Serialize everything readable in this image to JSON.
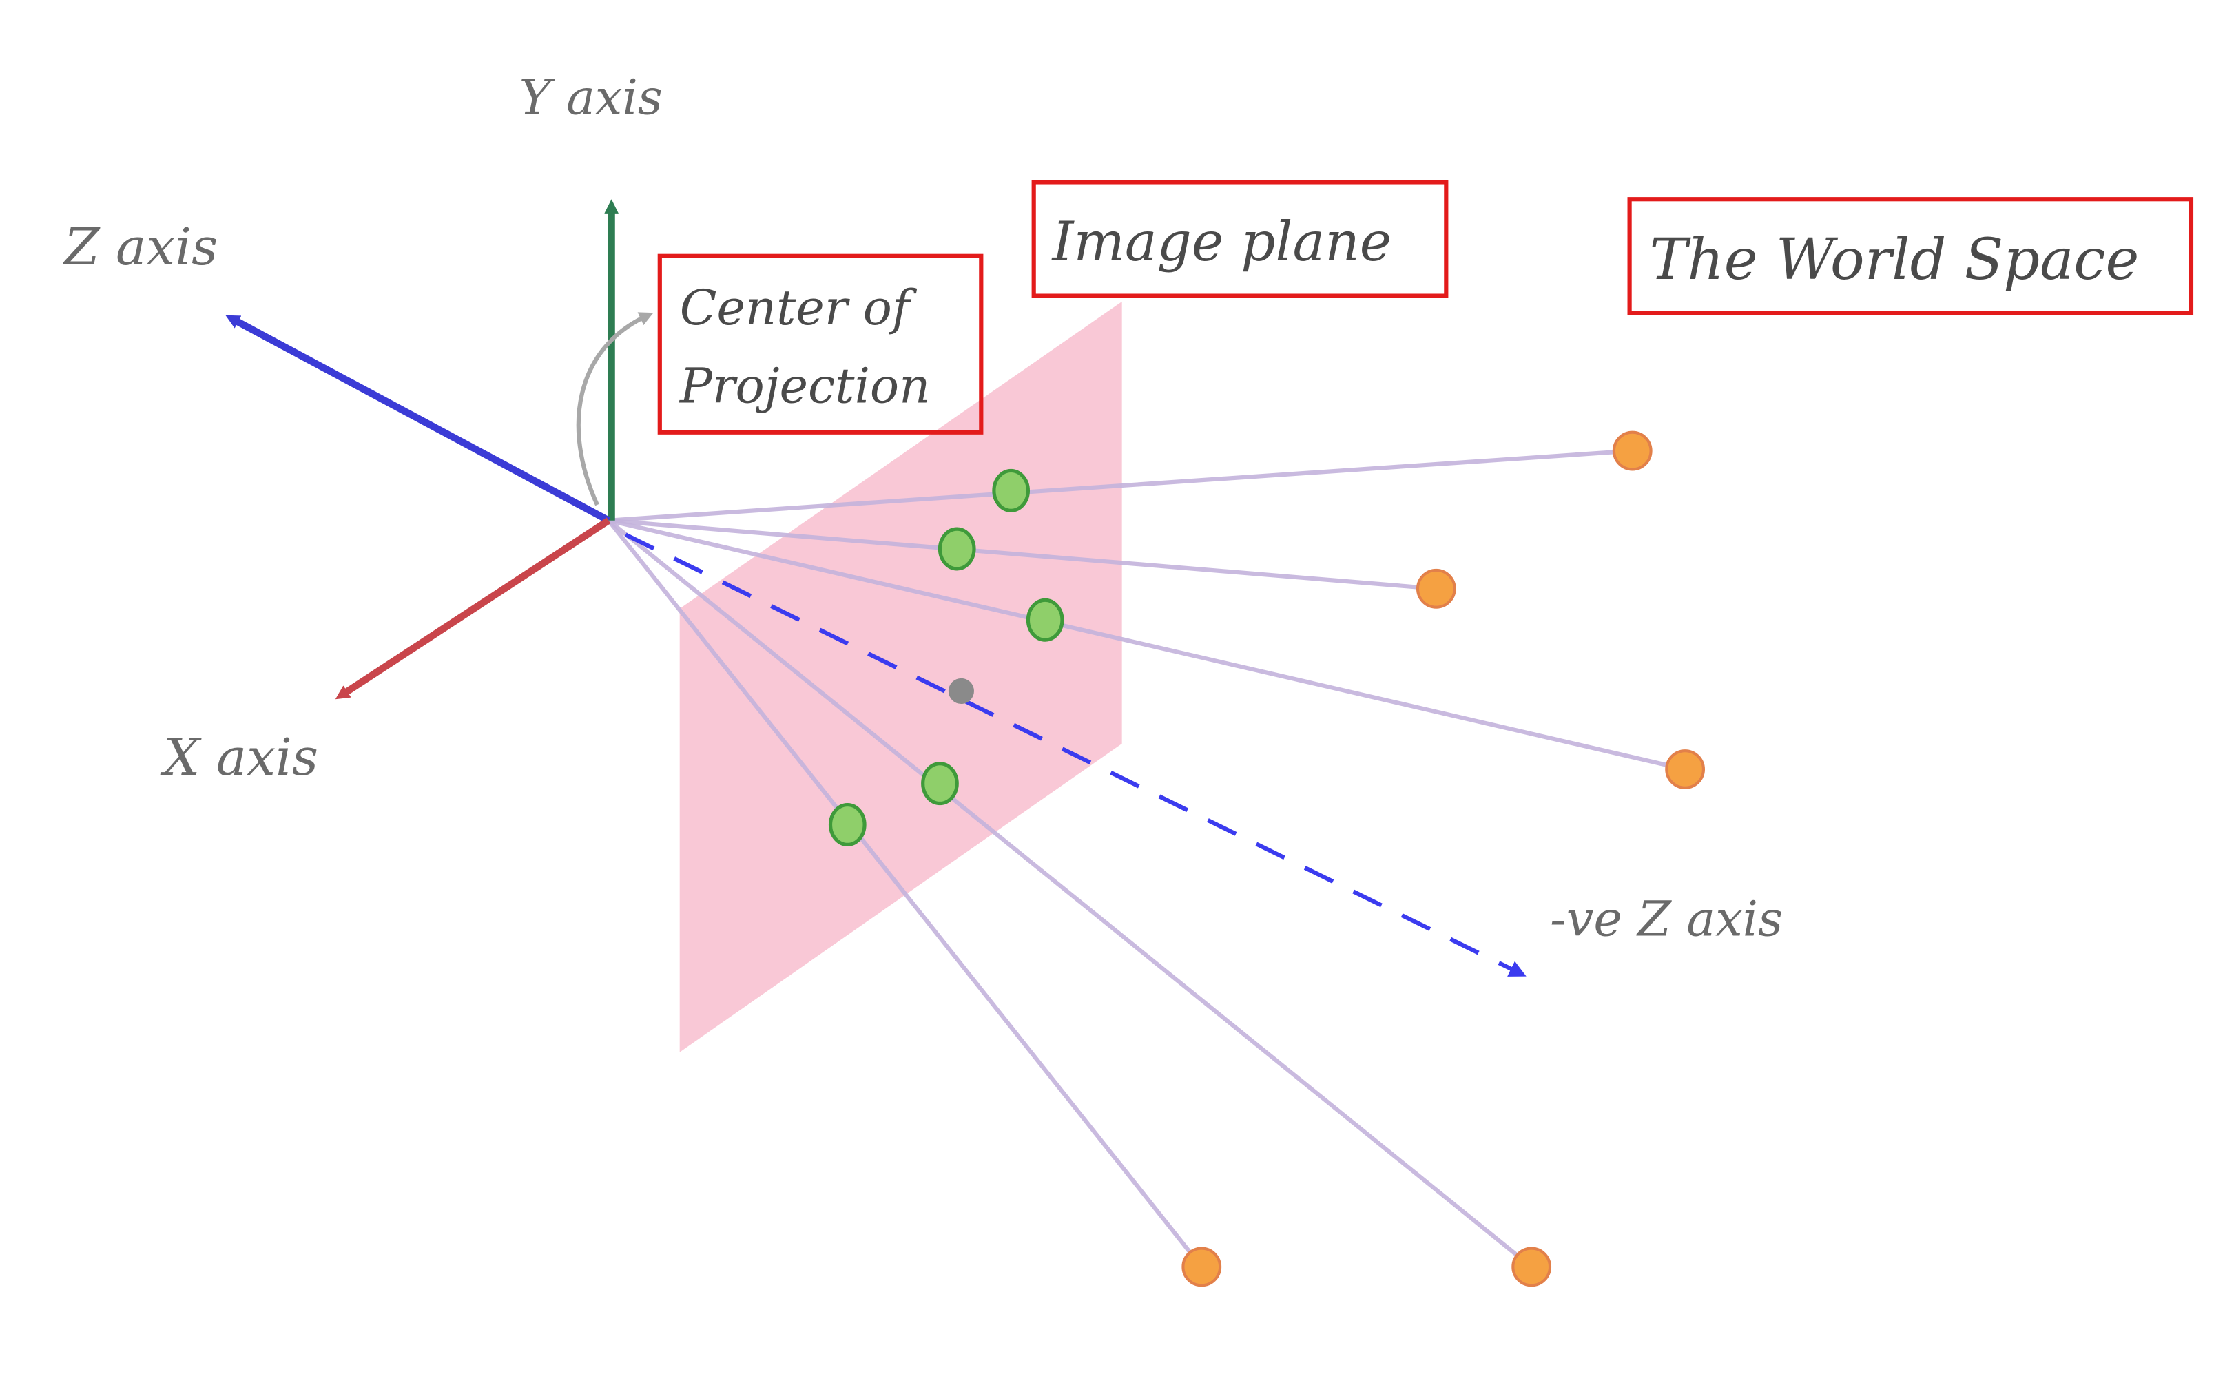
{
  "labels": {
    "y_axis": "Y axis",
    "z_axis": "Z axis",
    "x_axis": "X axis",
    "neg_z_axis": "-ve Z axis",
    "center_line1": "Center of",
    "center_line2": "Projection",
    "image_plane": "Image plane",
    "world_space": "The World Space"
  },
  "colors": {
    "y_axis": "#2e7d52",
    "z_axis": "#3b3bd6",
    "x_axis": "#c9454b",
    "neg_z_axis": "#3b3bef",
    "image_plane": "#f7b6c8",
    "projection_ray": "#c3b3dc",
    "projected_point_fill": "#8fcf6a",
    "projected_point_stroke": "#3f9a3a",
    "world_point_fill": "#f5a142",
    "world_point_stroke": "#e2804a",
    "principal_point": "#8a8a8a",
    "highlight_box": "#e31b1b",
    "curved_arrow": "#a8a8a8"
  },
  "icons": {
    "projected_point": "green-dot-icon",
    "world_point": "orange-dot-icon",
    "principal_point": "gray-dot-icon",
    "curved_arrow": "curved-arrow-icon"
  }
}
